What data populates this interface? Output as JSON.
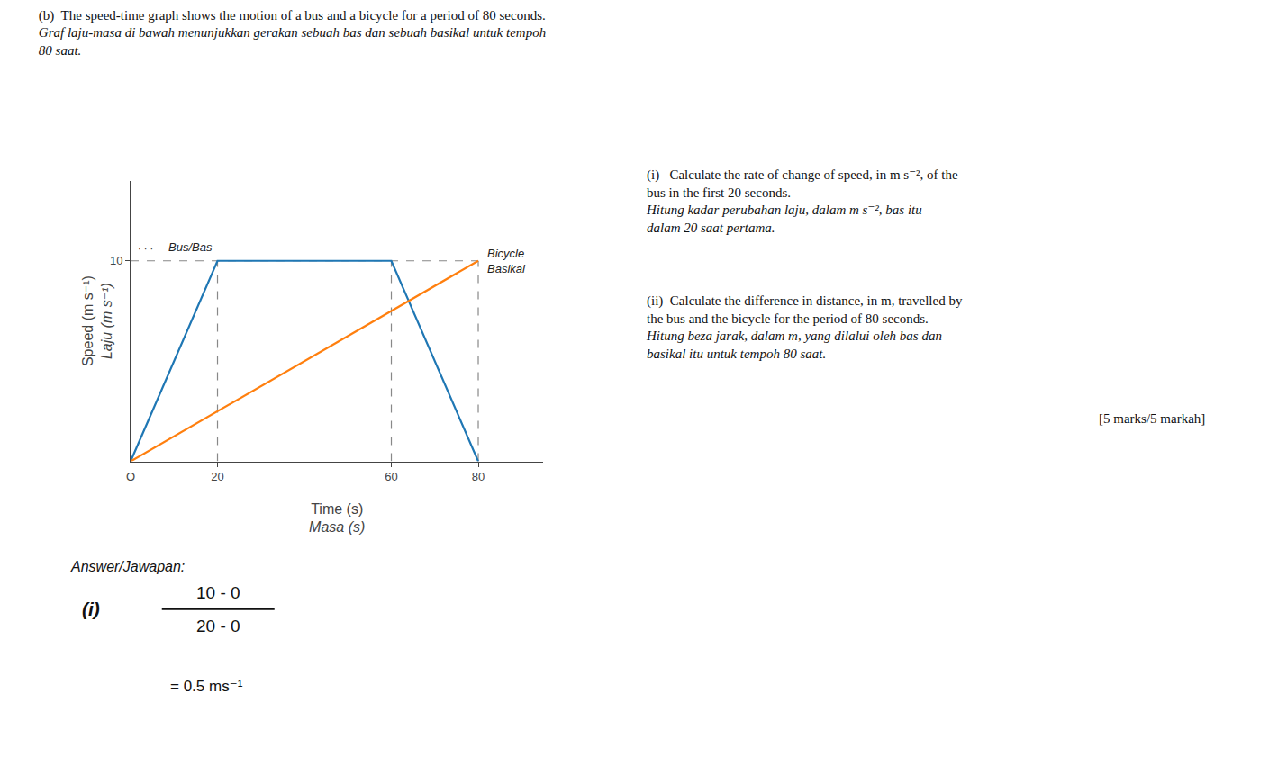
{
  "chart_data": {
    "type": "line",
    "title": "(b)  The speed-time graph shows the motion of a bus and a bicycle for a period of 80 seconds.",
    "subtitle": "Graf laju-masa di bawah menunjukkan gerakan sebuah bas dan sebuah basikal untuk tempoh\n80 saat.",
    "xlabel": "Time (s)\nMasa (s)",
    "ylabel": "Speed (m s⁻¹)\nLaju (m s⁻¹)",
    "series": [
      {
        "name": "Bus/Bas",
        "x": [
          0,
          20,
          60,
          80
        ],
        "values": [
          0,
          10,
          10,
          0
        ]
      },
      {
        "name": "Bicycle\nBasikal",
        "x": [
          0,
          80
        ],
        "values": [
          0,
          10
        ]
      }
    ],
    "xlim": [
      0,
      95
    ],
    "ylim": [
      0,
      14
    ],
    "xticks": [
      {
        "value": 0,
        "label": "O"
      },
      20,
      60,
      80
    ],
    "yticks": [
      10
    ],
    "grid": false,
    "annotations": [
      "(i)   Calculate the rate of change of speed, in m s⁻², of the\nbus in the first 20 seconds.\nHitung kadar perubahan laju, dalam m s⁻², bas itu\ndalam 20 saat pertama.",
      "(ii)  Calculate the difference in distance, in m, travelled by\nthe bus and the bicycle for the period of 80 seconds.\nHitung beza jarak, dalam m, yang dilalui oleh bas dan\nbasikal itu untuk tempoh 80 saat.",
      "[5 marks/5 markah]",
      "Answer/Jawapan:",
      "(i)",
      "10 - 0",
      "20 - 0",
      "= 0.5 ms⁻¹",
      "· · ·"
    ]
  }
}
